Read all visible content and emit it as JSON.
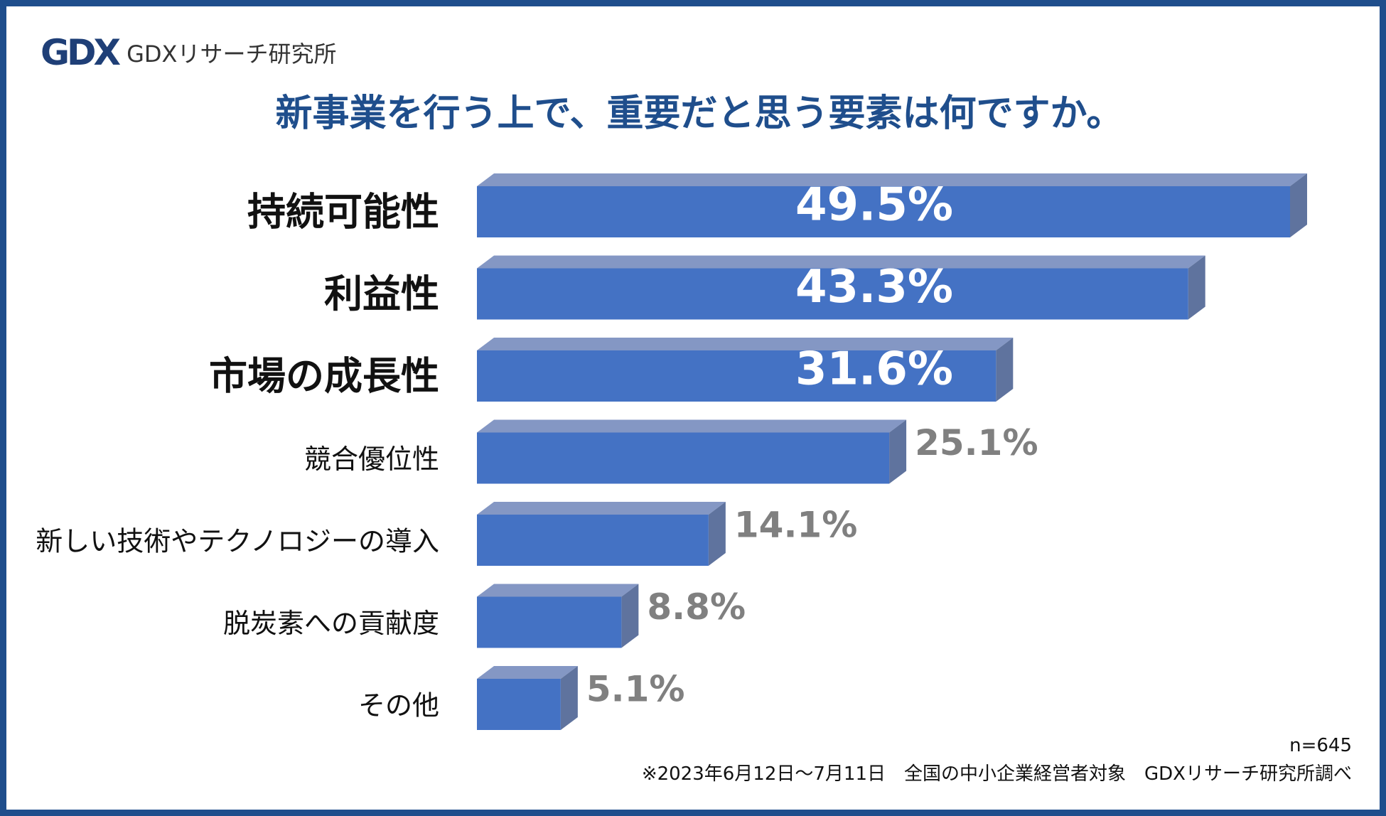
{
  "brand": {
    "logo_mark": "GDX",
    "logo_text": "GDXリサーチ研究所",
    "logo_color": "#1f3f77"
  },
  "title": "新事業を行う上で、重要だと思う要素は何ですか。",
  "colors": {
    "border": "#1f4e8c",
    "bar_front": "#4472c4",
    "bar_top": "#8497c4",
    "bar_side": "#5f739e",
    "title": "#1f4e8c",
    "value_outside": "#808080",
    "value_inside": "#ffffff"
  },
  "chart_data": {
    "type": "bar",
    "orientation": "horizontal",
    "style": "3d",
    "categories": [
      "持続可能性",
      "利益性",
      "市場の成長性",
      "競合優位性",
      "新しい技術やテクノロジーの導入",
      "脱炭素への貢献度",
      "その他"
    ],
    "values": [
      49.5,
      43.3,
      31.6,
      25.1,
      14.1,
      8.8,
      5.1
    ],
    "value_labels": [
      "49.5%",
      "43.3%",
      "31.6%",
      "25.1%",
      "14.1%",
      "8.8%",
      "5.1%"
    ],
    "highlight_top_n": 3,
    "unit": "%",
    "grid": false,
    "legend": false
  },
  "notes": {
    "sample": "n=645",
    "source": "※2023年6月12日～7月11日　全国の中小企業経営者対象　GDXリサーチ研究所調べ"
  }
}
